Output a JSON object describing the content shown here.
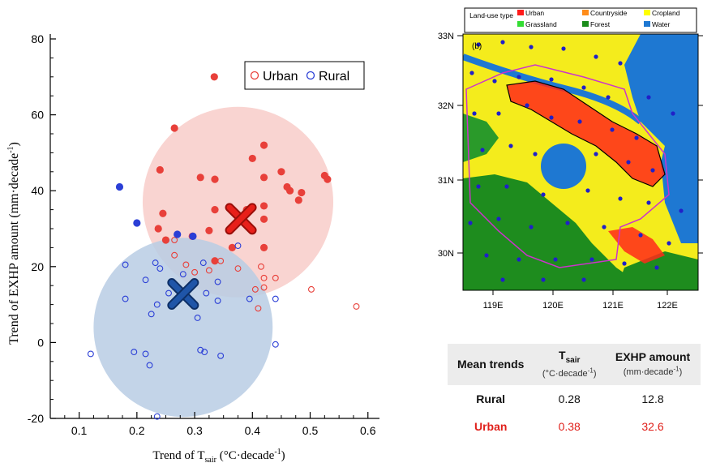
{
  "chart_data": [
    {
      "type": "scatter",
      "xlabel": "Trend of T",
      "xlabel_sub": "sair",
      "xlabel_unit": "(°C·decade",
      "ylabel": "Trend of EXHP amount (mm·decade",
      "xlim": [
        0.05,
        0.62
      ],
      "ylim": [
        -20,
        80
      ],
      "xticks": [
        "0.1",
        "0.2",
        "0.3",
        "0.4",
        "0.5",
        "0.6"
      ],
      "yticks": [
        "-20",
        "0",
        "20",
        "40",
        "60",
        "80"
      ],
      "legend_position": "top-right",
      "colors": {
        "Urban": "#e8403a",
        "Rural": "#2b3fd6"
      },
      "series": [
        {
          "name": "Urban",
          "filled_points": [
            [
              0.334,
              70
            ],
            [
              0.265,
              56.5
            ],
            [
              0.24,
              45.5
            ],
            [
              0.31,
              43.5
            ],
            [
              0.335,
              43
            ],
            [
              0.245,
              34
            ],
            [
              0.237,
              30
            ],
            [
              0.25,
              27
            ],
            [
              0.296,
              28
            ],
            [
              0.325,
              29.5
            ],
            [
              0.335,
              21.5
            ],
            [
              0.335,
              35
            ],
            [
              0.4,
              48.5
            ],
            [
              0.42,
              52
            ],
            [
              0.42,
              36
            ],
            [
              0.42,
              32.5
            ],
            [
              0.42,
              43.5
            ],
            [
              0.42,
              25
            ],
            [
              0.39,
              35
            ],
            [
              0.45,
              45
            ],
            [
              0.46,
              41
            ],
            [
              0.465,
              40
            ],
            [
              0.48,
              37.5
            ],
            [
              0.485,
              39.5
            ],
            [
              0.525,
              44
            ],
            [
              0.53,
              43
            ],
            [
              0.365,
              25
            ]
          ],
          "open_points": [
            [
              0.265,
              27
            ],
            [
              0.265,
              23
            ],
            [
              0.285,
              20.5
            ],
            [
              0.3,
              18.5
            ],
            [
              0.325,
              19
            ],
            [
              0.345,
              21.5
            ],
            [
              0.375,
              19.5
            ],
            [
              0.405,
              14
            ],
            [
              0.41,
              9
            ],
            [
              0.415,
              20
            ],
            [
              0.42,
              17
            ],
            [
              0.42,
              14.5
            ],
            [
              0.44,
              17
            ],
            [
              0.502,
              14
            ],
            [
              0.58,
              9.5
            ]
          ],
          "mean": [
            0.38,
            32.6
          ],
          "circle_center": [
            0.375,
            37
          ],
          "circle_radius_x": 0.165
        },
        {
          "name": "Rural",
          "filled_points": [
            [
              0.17,
              41
            ],
            [
              0.2,
              31.5
            ],
            [
              0.27,
              28.5
            ],
            [
              0.297,
              28
            ]
          ],
          "open_points": [
            [
              0.18,
              20.5
            ],
            [
              0.232,
              21
            ],
            [
              0.24,
              19.5
            ],
            [
              0.215,
              16.5
            ],
            [
              0.18,
              11.5
            ],
            [
              0.195,
              -2.5
            ],
            [
              0.215,
              -3
            ],
            [
              0.12,
              -3
            ],
            [
              0.222,
              -6
            ],
            [
              0.225,
              7.5
            ],
            [
              0.235,
              10
            ],
            [
              0.255,
              13
            ],
            [
              0.295,
              10.5
            ],
            [
              0.305,
              6.5
            ],
            [
              0.31,
              -2
            ],
            [
              0.317,
              -2.5
            ],
            [
              0.34,
              11
            ],
            [
              0.345,
              -3.5
            ],
            [
              0.315,
              21
            ],
            [
              0.28,
              18
            ],
            [
              0.34,
              16
            ],
            [
              0.375,
              25.5
            ],
            [
              0.395,
              11.5
            ],
            [
              0.44,
              11.5
            ],
            [
              0.44,
              -0.5
            ],
            [
              0.235,
              -19.5
            ],
            [
              0.32,
              13
            ]
          ],
          "mean": [
            0.28,
            12.8
          ],
          "circle_center": [
            0.28,
            4
          ],
          "circle_radius_x": 0.155
        }
      ]
    }
  ],
  "map": {
    "panel_label": "b",
    "legend_title": "Land-use type",
    "legend": [
      {
        "label": "Urban",
        "color": "#ff1a1a"
      },
      {
        "label": "Countryside",
        "color": "#ff8c1a"
      },
      {
        "label": "Cropland",
        "color": "#ffff00"
      },
      {
        "label": "Grassland",
        "color": "#33dd33"
      },
      {
        "label": "Forest",
        "color": "#1a8c1a"
      },
      {
        "label": "Water",
        "color": "#1e78d2"
      }
    ],
    "lat_labels": [
      "33N",
      "32N",
      "31N",
      "30N"
    ],
    "lon_labels": [
      "119E",
      "120E",
      "121E",
      "122E"
    ]
  },
  "table": {
    "headers": {
      "col1": "Mean trends",
      "col2_main": "T",
      "col2_sub": "sair",
      "col2_unit": "(°C·decade",
      "col3_main": "EXHP amount",
      "col3_unit": "(mm·decade"
    },
    "rows": [
      {
        "name": "Rural",
        "tsair": "0.28",
        "exhp": "12.8"
      },
      {
        "name": "Urban",
        "tsair": "0.38",
        "exhp": "32.6"
      }
    ],
    "urban_color": "#e0201b"
  }
}
